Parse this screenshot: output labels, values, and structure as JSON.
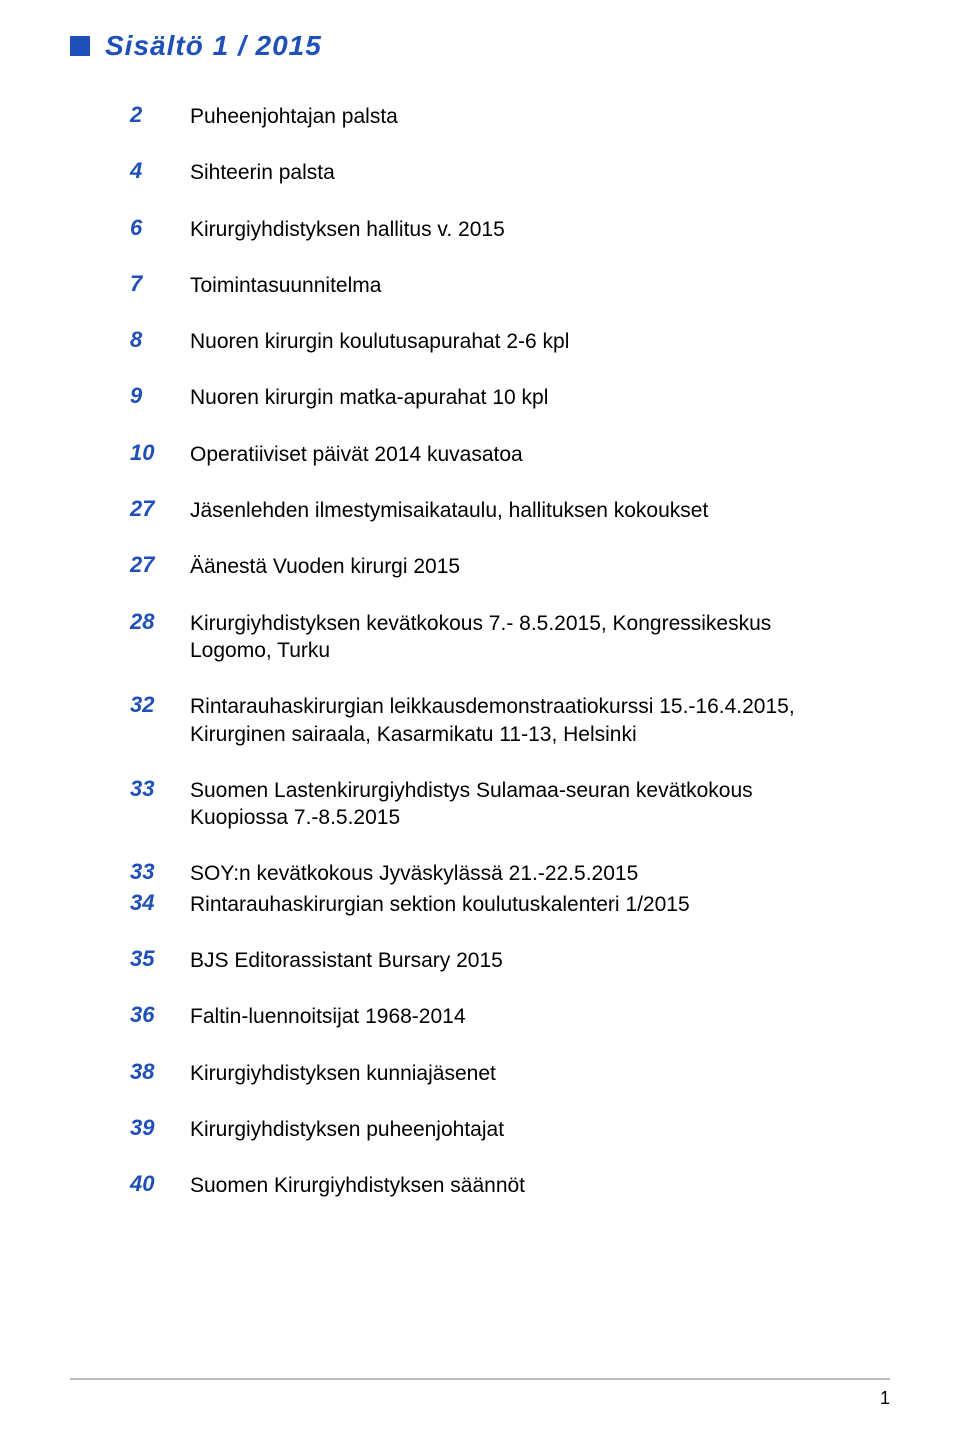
{
  "title": "Sisältö  1 / 2015",
  "toc": [
    {
      "num": "2",
      "text": "Puheenjohtajan palsta"
    },
    {
      "num": "4",
      "text": "Sihteerin palsta"
    },
    {
      "num": "6",
      "text": "Kirurgiyhdistyksen hallitus v. 2015"
    },
    {
      "num": "7",
      "text": "Toimintasuunnitelma"
    },
    {
      "num": "8",
      "text": "Nuoren kirurgin koulutusapurahat 2-6 kpl"
    },
    {
      "num": "9",
      "text": "Nuoren kirurgin matka-apurahat 10 kpl"
    },
    {
      "num": "10",
      "text": "Operatiiviset päivät 2014 kuvasatoa"
    },
    {
      "num": "27",
      "text": "Jäsenlehden ilmestymisaikataulu, hallituksen kokoukset"
    },
    {
      "num": "27",
      "text": "Äänestä Vuoden kirurgi 2015"
    },
    {
      "num": "28",
      "text": "Kirurgiyhdistyksen kevätkokous 7.- 8.5.2015, Kongressikeskus Logomo, Turku"
    },
    {
      "num": "32",
      "text": "Rintarauhaskirurgian leikkausdemonstraatiokurssi 15.-16.4.2015, Kirurginen sairaala, Kasarmikatu 11-13, Helsinki"
    },
    {
      "num": "33",
      "text": "Suomen Lastenkirurgiyhdistys Sulamaa-seuran kevätkokous Kuopiossa 7.-8.5.2015"
    },
    {
      "num": "33",
      "text": "SOY:n kevätkokous Jyväskylässä 21.-22.5.2015",
      "tight": true
    },
    {
      "num": "34",
      "text": "Rintarauhaskirurgian sektion koulutuskalenteri 1/2015"
    },
    {
      "num": "35",
      "text": "BJS Editorassistant Bursary 2015"
    },
    {
      "num": "36",
      "text": "Faltin-luennoitsijat 1968-2014"
    },
    {
      "num": "38",
      "text": "Kirurgiyhdistyksen kunniajäsenet"
    },
    {
      "num": "39",
      "text": "Kirurgiyhdistyksen puheenjohtajat"
    },
    {
      "num": "40",
      "text": "Suomen Kirurgiyhdistyksen säännöt"
    }
  ],
  "footer_page": "1",
  "colors": {
    "accent": "#1f4fb8",
    "text": "#000000",
    "footer_line": "#c0c0c0",
    "background": "#ffffff"
  },
  "typography": {
    "title_fontsize": 28,
    "number_fontsize": 22,
    "entry_fontsize": 21,
    "footer_fontsize": 18
  }
}
